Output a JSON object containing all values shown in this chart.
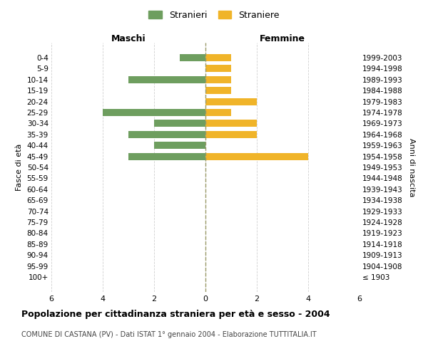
{
  "age_groups": [
    "0-4",
    "5-9",
    "10-14",
    "15-19",
    "20-24",
    "25-29",
    "30-34",
    "35-39",
    "40-44",
    "45-49",
    "50-54",
    "55-59",
    "60-64",
    "65-69",
    "70-74",
    "75-79",
    "80-84",
    "85-89",
    "90-94",
    "95-99",
    "100+"
  ],
  "birth_years": [
    "1999-2003",
    "1994-1998",
    "1989-1993",
    "1984-1988",
    "1979-1983",
    "1974-1978",
    "1969-1973",
    "1964-1968",
    "1959-1963",
    "1954-1958",
    "1949-1953",
    "1944-1948",
    "1939-1943",
    "1934-1938",
    "1929-1933",
    "1924-1928",
    "1919-1923",
    "1914-1918",
    "1909-1913",
    "1904-1908",
    "≤ 1903"
  ],
  "maschi": [
    1,
    0,
    3,
    0,
    0,
    4,
    2,
    3,
    2,
    3,
    0,
    0,
    0,
    0,
    0,
    0,
    0,
    0,
    0,
    0,
    0
  ],
  "femmine": [
    1,
    1,
    1,
    1,
    2,
    1,
    2,
    2,
    0,
    4,
    0,
    0,
    0,
    0,
    0,
    0,
    0,
    0,
    0,
    0,
    0
  ],
  "color_maschi": "#6e9e5f",
  "color_femmine": "#f0b429",
  "title": "Popolazione per cittadinanza straniera per età e sesso - 2004",
  "subtitle": "COMUNE DI CASTANA (PV) - Dati ISTAT 1° gennaio 2004 - Elaborazione TUTTITALIA.IT",
  "xlabel_left": "Maschi",
  "xlabel_right": "Femmine",
  "ylabel_left": "Fasce di età",
  "ylabel_right": "Anni di nascita",
  "legend_maschi": "Stranieri",
  "legend_femmine": "Straniere",
  "xlim": 6,
  "background_color": "#ffffff",
  "grid_color": "#d0d0d0",
  "zero_line_color": "#999966"
}
